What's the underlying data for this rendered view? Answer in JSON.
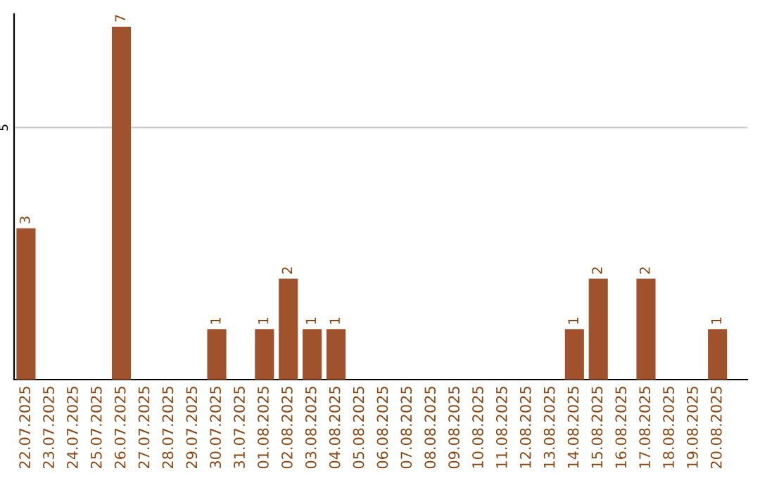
{
  "chart_data": {
    "type": "bar",
    "categories": [
      "22.07.2025",
      "23.07.2025",
      "24.07.2025",
      "25.07.2025",
      "26.07.2025",
      "27.07.2025",
      "28.07.2025",
      "29.07.2025",
      "30.07.2025",
      "31.07.2025",
      "01.08.2025",
      "02.08.2025",
      "03.08.2025",
      "04.08.2025",
      "05.08.2025",
      "06.08.2025",
      "07.08.2025",
      "08.08.2025",
      "09.08.2025",
      "10.08.2025",
      "11.08.2025",
      "12.08.2025",
      "13.08.2025",
      "14.08.2025",
      "15.08.2025",
      "16.08.2025",
      "17.08.2025",
      "18.08.2025",
      "19.08.2025",
      "20.08.2025"
    ],
    "values": [
      3,
      0,
      0,
      0,
      7,
      0,
      0,
      0,
      1,
      0,
      1,
      2,
      1,
      1,
      0,
      0,
      0,
      0,
      0,
      0,
      0,
      0,
      0,
      1,
      2,
      0,
      2,
      0,
      0,
      1
    ],
    "value_labels": [
      "3",
      null,
      null,
      null,
      "7",
      null,
      null,
      null,
      "1",
      null,
      "1",
      "2",
      "1",
      "1",
      null,
      null,
      null,
      null,
      null,
      null,
      null,
      null,
      null,
      "1",
      "2",
      null,
      "2",
      null,
      null,
      "1"
    ],
    "color": "#a0522d",
    "ylim": [
      0,
      7.25
    ],
    "yticks": [
      5
    ],
    "grid": "y"
  }
}
